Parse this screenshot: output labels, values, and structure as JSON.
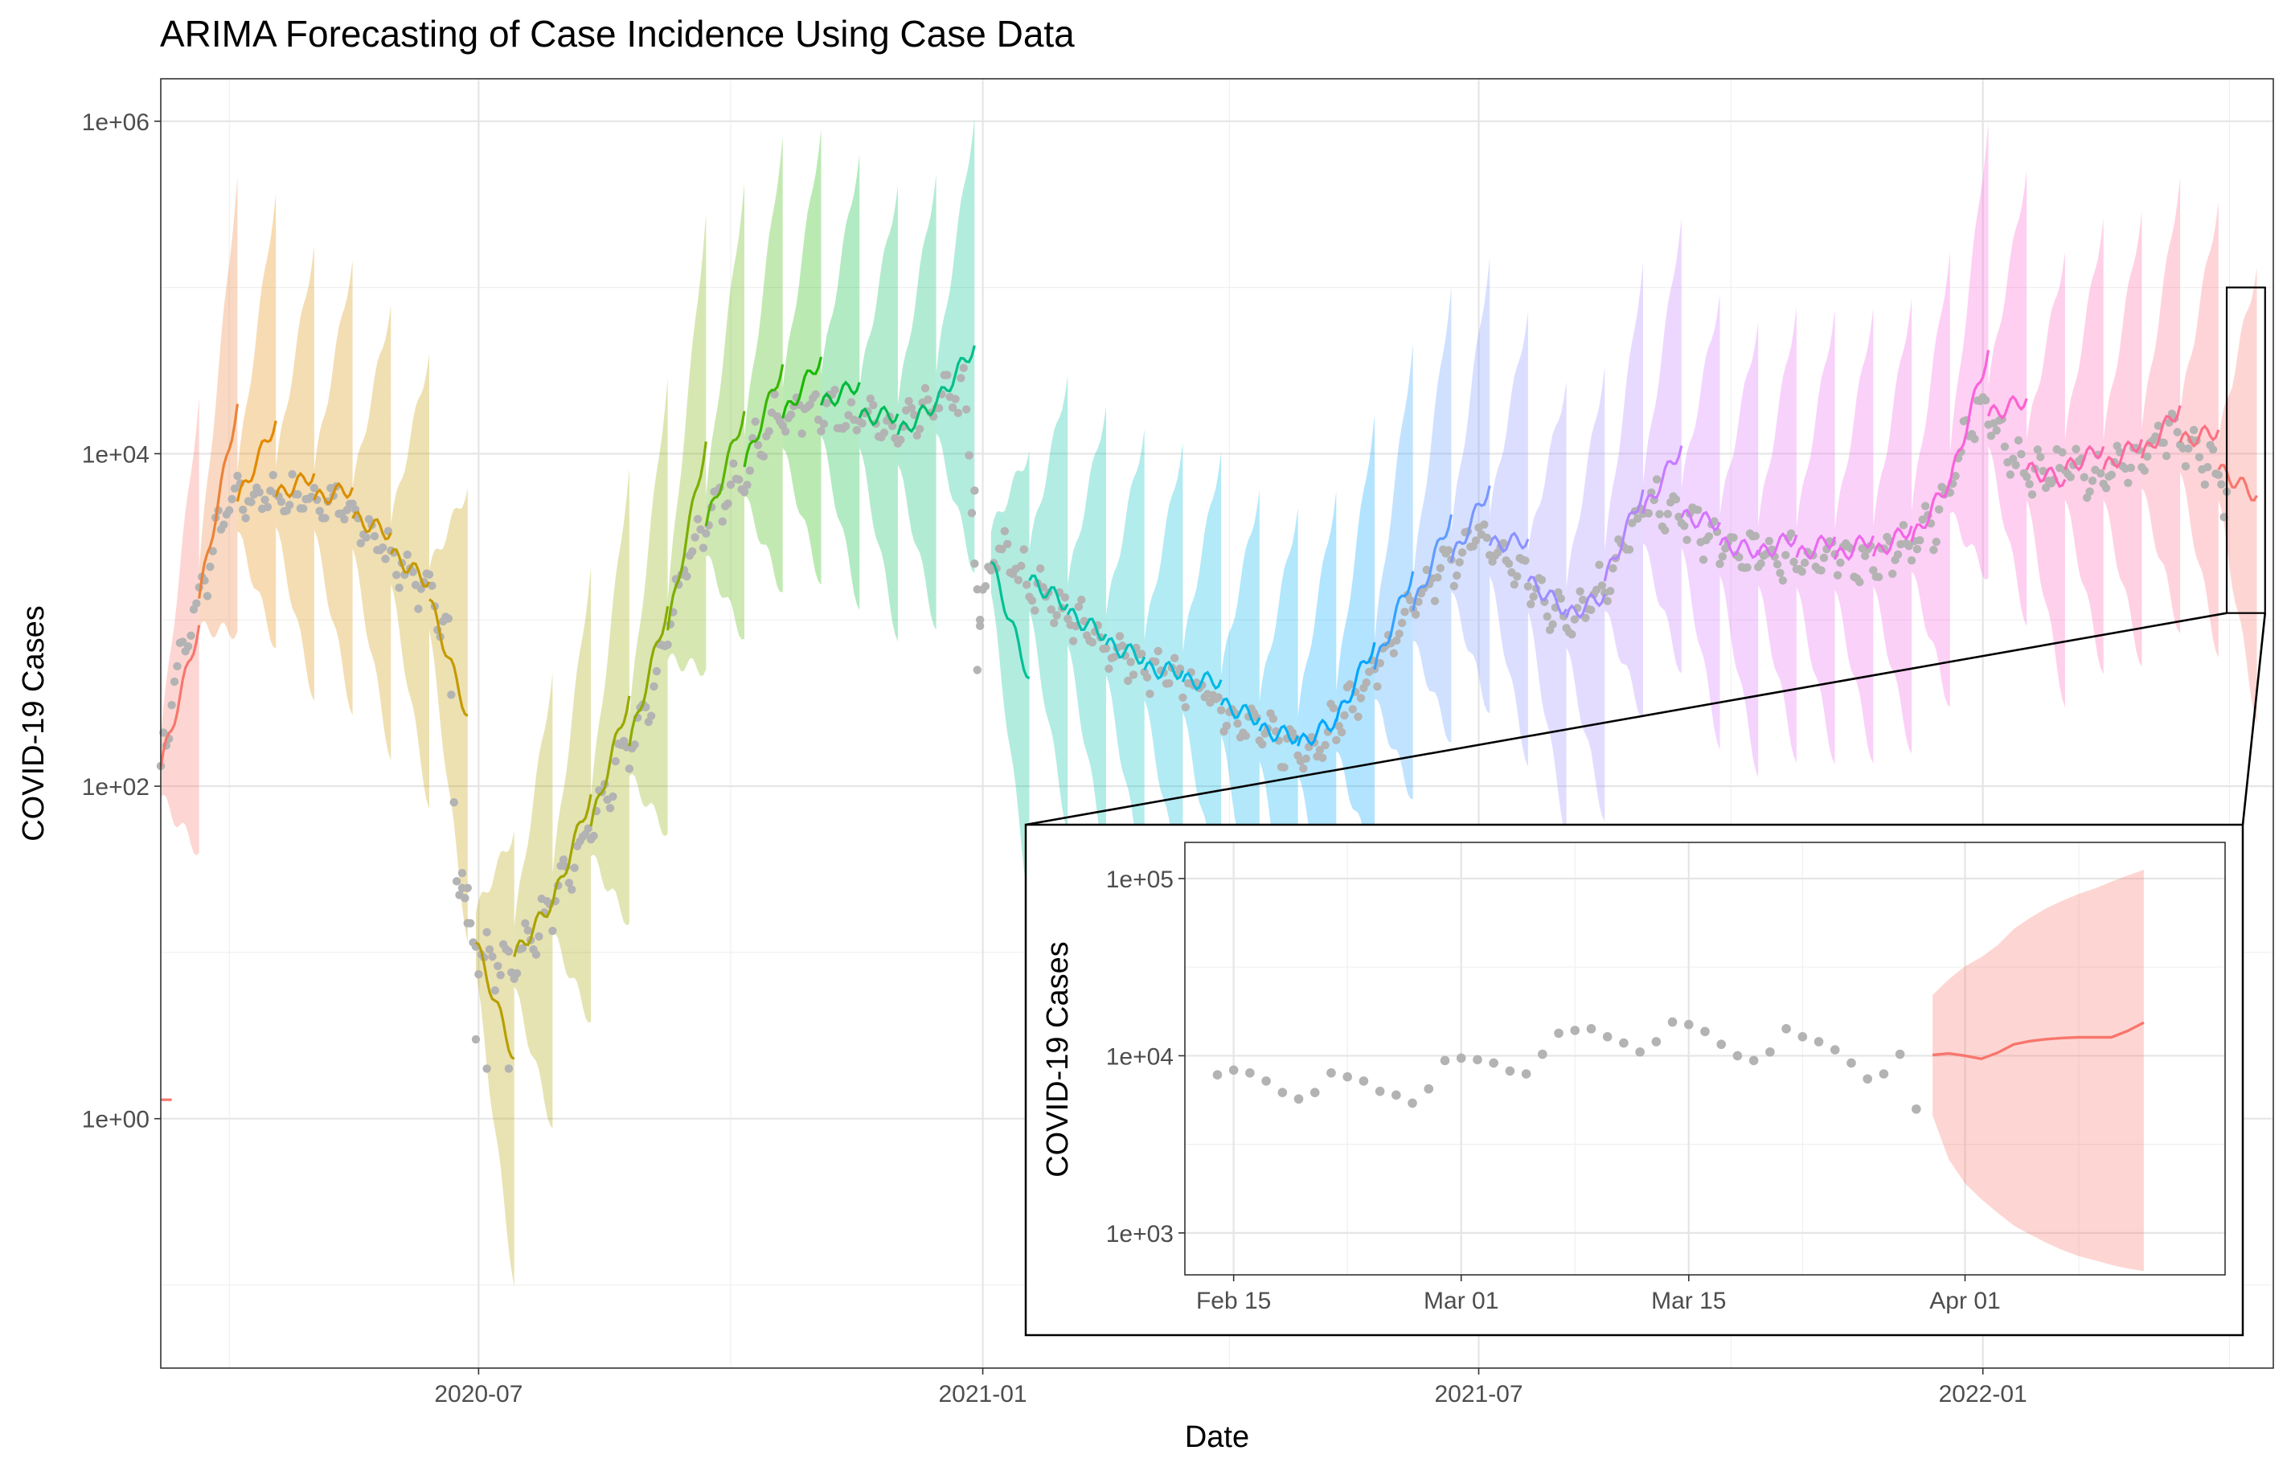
{
  "chart_data": {
    "type": "line",
    "title": "ARIMA Forecasting of Case Incidence Using Case Data",
    "xlabel": "Date",
    "ylabel": "COVID-19 Cases",
    "y_scale": "log10",
    "ylim": [
      0.0316,
      1800000
    ],
    "xlim": [
      "2020-03-07",
      "2022-04-17"
    ],
    "grid": true,
    "legend": "none",
    "x_ticks": [
      {
        "date": "2020-07-01",
        "label": "2020-07"
      },
      {
        "date": "2021-01-01",
        "label": "2021-01"
      },
      {
        "date": "2021-07-01",
        "label": "2021-07"
      },
      {
        "date": "2022-01-01",
        "label": "2022-01"
      }
    ],
    "y_ticks": [
      {
        "value": 1,
        "label": "1e+00"
      },
      {
        "value": 100,
        "label": "1e+02"
      },
      {
        "value": 10000,
        "label": "1e+04"
      },
      {
        "value": 1000000,
        "label": "1e+06"
      }
    ],
    "observed_color": "#b3b3b3",
    "observed": {
      "anchors": [
        [
          "2020-03-07",
          130
        ],
        [
          "2020-03-12",
          420
        ],
        [
          "2020-03-18",
          900
        ],
        [
          "2020-03-27",
          3000
        ],
        [
          "2020-04-01",
          5000
        ],
        [
          "2020-04-10",
          5500
        ],
        [
          "2020-04-25",
          5500
        ],
        [
          "2020-05-10",
          5000
        ],
        [
          "2020-05-25",
          3000
        ],
        [
          "2020-06-05",
          2000
        ],
        [
          "2020-06-15",
          1200
        ],
        [
          "2020-06-20",
          1000
        ],
        [
          "2020-06-23",
          30
        ],
        [
          "2020-07-01",
          10
        ],
        [
          "2020-07-10",
          8
        ],
        [
          "2020-07-20",
          12
        ],
        [
          "2020-08-01",
          25
        ],
        [
          "2020-08-15",
          80
        ],
        [
          "2020-09-01",
          300
        ],
        [
          "2020-09-15",
          2500
        ],
        [
          "2020-10-01",
          6000
        ],
        [
          "2020-10-15",
          15000
        ],
        [
          "2020-11-01",
          20000
        ],
        [
          "2020-11-15",
          17000
        ],
        [
          "2020-12-01",
          13000
        ],
        [
          "2020-12-15",
          20000
        ],
        [
          "2020-12-25",
          25000
        ],
        [
          "2020-12-31",
          900
        ],
        [
          "2021-01-05",
          2800
        ],
        [
          "2021-01-20",
          1600
        ],
        [
          "2021-02-10",
          800
        ],
        [
          "2021-03-01",
          500
        ],
        [
          "2021-03-20",
          400
        ],
        [
          "2021-04-05",
          250
        ],
        [
          "2021-04-20",
          180
        ],
        [
          "2021-05-01",
          170
        ],
        [
          "2021-05-15",
          300
        ],
        [
          "2021-06-01",
          800
        ],
        [
          "2021-06-15",
          1800
        ],
        [
          "2021-07-01",
          3200
        ],
        [
          "2021-07-15",
          2000
        ],
        [
          "2021-08-01",
          1000
        ],
        [
          "2021-08-15",
          1600
        ],
        [
          "2021-09-01",
          5000
        ],
        [
          "2021-09-15",
          4000
        ],
        [
          "2021-10-01",
          2500
        ],
        [
          "2021-10-20",
          2400
        ],
        [
          "2021-11-10",
          2300
        ],
        [
          "2021-12-01",
          2500
        ],
        [
          "2021-12-15",
          4000
        ],
        [
          "2021-12-31",
          20000
        ],
        [
          "2022-01-05",
          15000
        ],
        [
          "2022-01-15",
          8000
        ],
        [
          "2022-02-01",
          8000
        ],
        [
          "2022-02-15",
          8000
        ],
        [
          "2022-03-01",
          9500
        ],
        [
          "2022-03-10",
          13000
        ],
        [
          "2022-03-20",
          10000
        ],
        [
          "2022-03-28",
          8000
        ],
        [
          "2022-03-31",
          5000
        ]
      ],
      "outliers": [
        [
          "2020-06-25",
          30
        ],
        [
          "2020-06-27",
          15
        ],
        [
          "2020-07-04",
          2
        ],
        [
          "2020-07-12",
          2
        ],
        [
          "2020-06-30",
          3
        ],
        [
          "2020-12-30",
          500
        ],
        [
          "2020-12-31",
          1000
        ],
        [
          "2020-12-29",
          6000
        ]
      ]
    },
    "forecast_series": [
      {
        "start": "2020-03-07",
        "color": "#f8766d"
      },
      {
        "start": "2020-03-21",
        "color": "#ec8239"
      },
      {
        "start": "2020-04-04",
        "color": "#e38900"
      },
      {
        "start": "2020-04-18",
        "color": "#dc8d00"
      },
      {
        "start": "2020-05-02",
        "color": "#d89000"
      },
      {
        "start": "2020-05-16",
        "color": "#cd9600"
      },
      {
        "start": "2020-05-30",
        "color": "#c49a00"
      },
      {
        "start": "2020-06-13",
        "color": "#c49a00"
      },
      {
        "start": "2020-06-30",
        "color": "#b79f00"
      },
      {
        "start": "2020-07-14",
        "color": "#aba300"
      },
      {
        "start": "2020-07-28",
        "color": "#a3a500"
      },
      {
        "start": "2020-08-11",
        "color": "#9aa800"
      },
      {
        "start": "2020-08-25",
        "color": "#8bab00"
      },
      {
        "start": "2020-09-08",
        "color": "#7cae00"
      },
      {
        "start": "2020-09-22",
        "color": "#5bb300"
      },
      {
        "start": "2020-10-06",
        "color": "#39b600"
      },
      {
        "start": "2020-10-20",
        "color": "#1bb800"
      },
      {
        "start": "2020-11-03",
        "color": "#00ba38"
      },
      {
        "start": "2020-11-17",
        "color": "#00bc59"
      },
      {
        "start": "2020-12-01",
        "color": "#00be6c"
      },
      {
        "start": "2020-12-15",
        "color": "#00c08b"
      },
      {
        "start": "2021-01-04",
        "color": "#00c094"
      },
      {
        "start": "2021-01-18",
        "color": "#00c1a3"
      },
      {
        "start": "2021-02-01",
        "color": "#00c0af"
      },
      {
        "start": "2021-02-15",
        "color": "#00bfc4"
      },
      {
        "start": "2021-03-01",
        "color": "#00bcd8"
      },
      {
        "start": "2021-03-15",
        "color": "#00b9e3"
      },
      {
        "start": "2021-03-29",
        "color": "#00b4ef"
      },
      {
        "start": "2021-04-12",
        "color": "#00b0f6"
      },
      {
        "start": "2021-04-26",
        "color": "#00a9ff"
      },
      {
        "start": "2021-05-10",
        "color": "#00a5ff"
      },
      {
        "start": "2021-05-24",
        "color": "#35a2ff"
      },
      {
        "start": "2021-06-07",
        "color": "#619cff"
      },
      {
        "start": "2021-06-21",
        "color": "#7997ff"
      },
      {
        "start": "2021-07-05",
        "color": "#8b93ff"
      },
      {
        "start": "2021-07-19",
        "color": "#9a8eff"
      },
      {
        "start": "2021-08-02",
        "color": "#a58aff"
      },
      {
        "start": "2021-08-16",
        "color": "#b385ff"
      },
      {
        "start": "2021-08-30",
        "color": "#c77cff"
      },
      {
        "start": "2021-09-13",
        "color": "#d376ff"
      },
      {
        "start": "2021-09-27",
        "color": "#dc71fa"
      },
      {
        "start": "2021-10-11",
        "color": "#e36ef6"
      },
      {
        "start": "2021-10-25",
        "color": "#e96bf0"
      },
      {
        "start": "2021-11-08",
        "color": "#ef67eb"
      },
      {
        "start": "2021-11-22",
        "color": "#f365e6"
      },
      {
        "start": "2021-12-06",
        "color": "#f763e0"
      },
      {
        "start": "2021-12-20",
        "color": "#fa62db"
      },
      {
        "start": "2022-01-03",
        "color": "#fd61d1"
      },
      {
        "start": "2022-01-17",
        "color": "#ff62bc"
      },
      {
        "start": "2022-01-31",
        "color": "#ff65ae"
      },
      {
        "start": "2022-02-14",
        "color": "#ff689f"
      },
      {
        "start": "2022-02-28",
        "color": "#ff6c91"
      },
      {
        "start": "2022-03-14",
        "color": "#fc717f"
      },
      {
        "start": "2022-03-28",
        "color": "#f8766d"
      }
    ],
    "stray_mark": {
      "x": [
        "2020-03-07",
        "2020-03-11"
      ],
      "y": 1.3,
      "color": "#f8766d"
    },
    "zoom_box": {
      "x": [
        "2022-03-31",
        "2022-04-14"
      ],
      "y": [
        1100,
        100000
      ]
    },
    "inset": {
      "ylabel": "COVID-19 Cases",
      "y_scale": "log10",
      "xlim": [
        "2022-02-12",
        "2022-04-17"
      ],
      "ylim": [
        580,
        160000
      ],
      "x_ticks": [
        {
          "date": "2022-02-15",
          "label": "Feb 15"
        },
        {
          "date": "2022-03-01",
          "label": "Mar 01"
        },
        {
          "date": "2022-03-15",
          "label": "Mar 15"
        },
        {
          "date": "2022-04-01",
          "label": "Apr 01"
        }
      ],
      "y_ticks": [
        {
          "value": 1000,
          "label": "1e+03"
        },
        {
          "value": 10000,
          "label": "1e+04"
        },
        {
          "value": 100000,
          "label": "1e+05"
        }
      ],
      "observed": [
        [
          "2022-02-14",
          7800
        ],
        [
          "2022-02-15",
          8300
        ],
        [
          "2022-02-16",
          8000
        ],
        [
          "2022-02-17",
          7200
        ],
        [
          "2022-02-18",
          6200
        ],
        [
          "2022-02-19",
          5700
        ],
        [
          "2022-02-20",
          6200
        ],
        [
          "2022-02-21",
          8000
        ],
        [
          "2022-02-22",
          7600
        ],
        [
          "2022-02-23",
          7200
        ],
        [
          "2022-02-24",
          6300
        ],
        [
          "2022-02-25",
          6000
        ],
        [
          "2022-02-26",
          5400
        ],
        [
          "2022-02-27",
          6500
        ],
        [
          "2022-02-28",
          9400
        ],
        [
          "2022-03-01",
          9700
        ],
        [
          "2022-03-02",
          9500
        ],
        [
          "2022-03-03",
          9100
        ],
        [
          "2022-03-04",
          8200
        ],
        [
          "2022-03-05",
          7900
        ],
        [
          "2022-03-06",
          10200
        ],
        [
          "2022-03-07",
          13400
        ],
        [
          "2022-03-08",
          13900
        ],
        [
          "2022-03-09",
          14200
        ],
        [
          "2022-03-10",
          12800
        ],
        [
          "2022-03-11",
          11800
        ],
        [
          "2022-03-12",
          10500
        ],
        [
          "2022-03-13",
          12000
        ],
        [
          "2022-03-14",
          15500
        ],
        [
          "2022-03-15",
          15000
        ],
        [
          "2022-03-16",
          13700
        ],
        [
          "2022-03-17",
          11600
        ],
        [
          "2022-03-18",
          10000
        ],
        [
          "2022-03-19",
          9400
        ],
        [
          "2022-03-20",
          10500
        ],
        [
          "2022-03-21",
          14200
        ],
        [
          "2022-03-22",
          12800
        ],
        [
          "2022-03-23",
          12000
        ],
        [
          "2022-03-24",
          10800
        ],
        [
          "2022-03-25",
          9100
        ],
        [
          "2022-03-26",
          7400
        ],
        [
          "2022-03-27",
          7900
        ],
        [
          "2022-03-28",
          10200
        ],
        [
          "2022-03-29",
          5000
        ]
      ],
      "forecast": {
        "color": "#f8766d",
        "x": [
          "2022-03-30",
          "2022-03-31",
          "2022-04-01",
          "2022-04-02",
          "2022-04-03",
          "2022-04-04",
          "2022-04-05",
          "2022-04-06",
          "2022-04-07",
          "2022-04-08",
          "2022-04-09",
          "2022-04-10",
          "2022-04-11",
          "2022-04-12"
        ],
        "mean": [
          10100,
          10300,
          10000,
          9600,
          10400,
          11600,
          12100,
          12400,
          12600,
          12700,
          12700,
          12700,
          13800,
          15400
        ],
        "lower": [
          4600,
          2600,
          1900,
          1550,
          1300,
          1100,
          980,
          880,
          800,
          740,
          700,
          660,
          630,
          610
        ],
        "upper": [
          22000,
          27000,
          32000,
          36000,
          42000,
          52000,
          60000,
          68000,
          75000,
          82000,
          88000,
          96000,
          104000,
          112000
        ]
      }
    }
  }
}
